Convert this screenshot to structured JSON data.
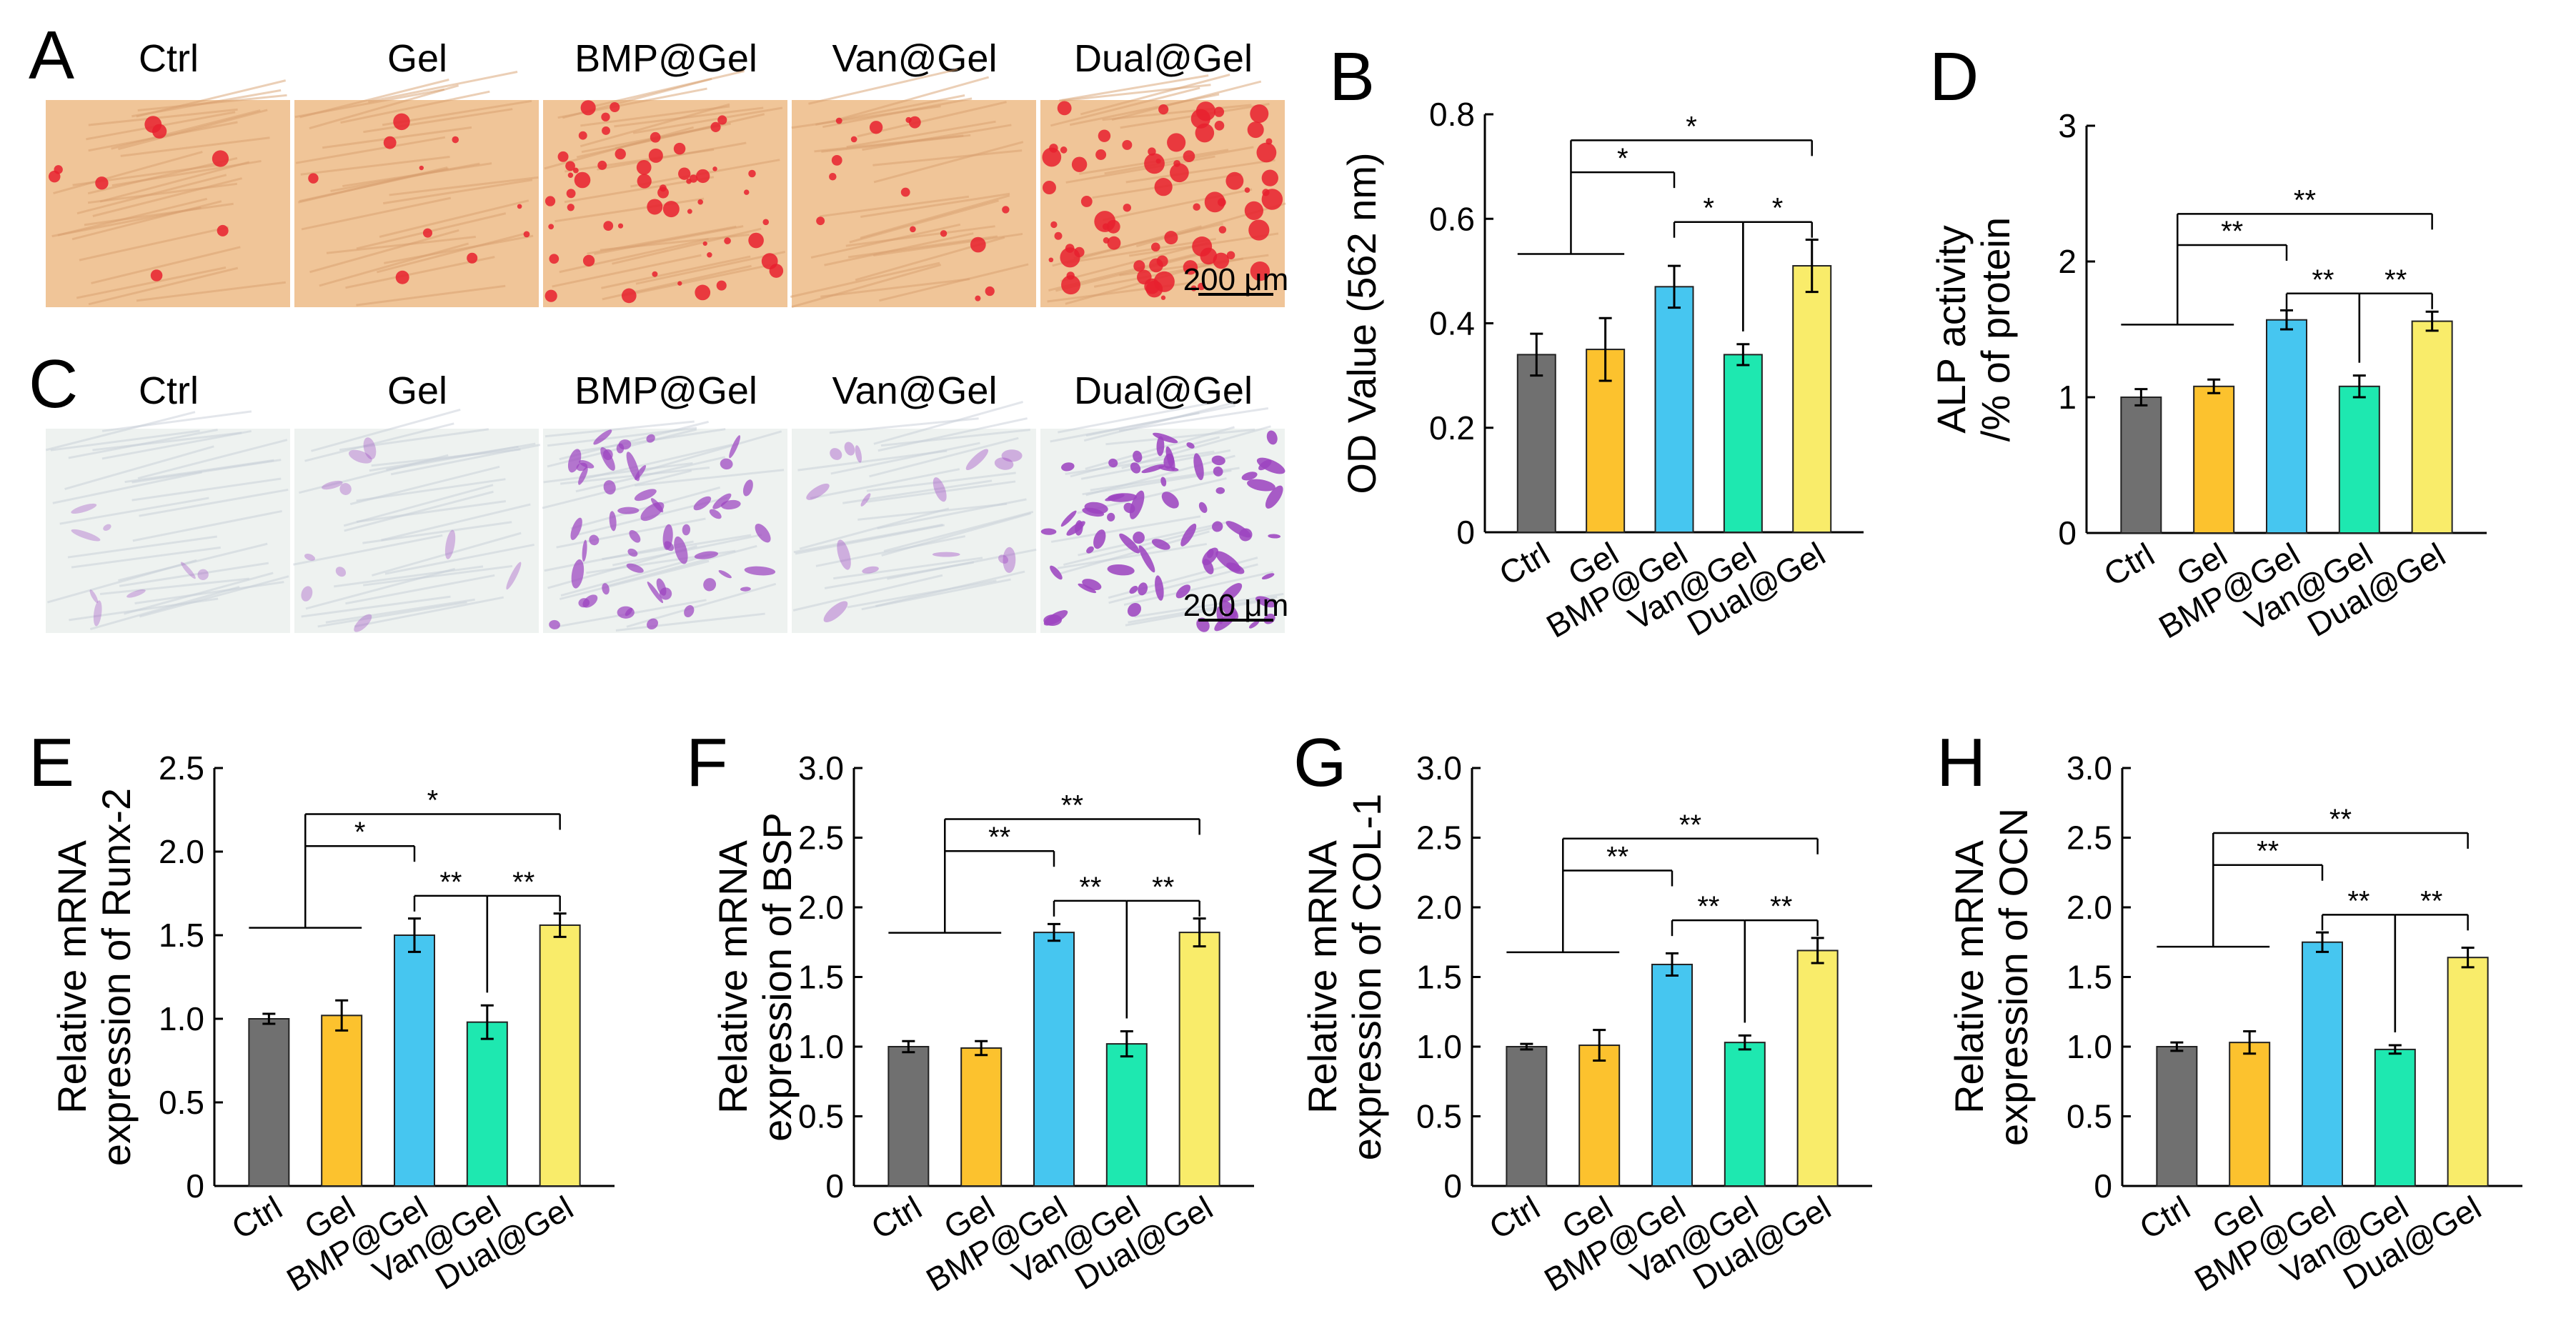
{
  "micrographs": [
    {
      "label": "A",
      "groups": [
        "Ctrl",
        "Gel",
        "BMP@Gel",
        "Van@Gel",
        "Dual@Gel"
      ],
      "stain": "alizarin-red",
      "scale_bar": "200 μm"
    },
    {
      "label": "C",
      "groups": [
        "Ctrl",
        "Gel",
        "BMP@Gel",
        "Van@Gel",
        "Dual@Gel"
      ],
      "stain": "alp-purple",
      "scale_bar": "200 μm"
    }
  ],
  "chart_data": [
    {
      "panel": "B",
      "type": "bar",
      "categories": [
        "Ctrl",
        "Gel",
        "BMP@Gel",
        "Van@Gel",
        "Dual@Gel"
      ],
      "values": [
        0.34,
        0.35,
        0.47,
        0.34,
        0.51
      ],
      "errors": [
        0.04,
        0.06,
        0.04,
        0.02,
        0.05
      ],
      "ylabel": "OD Value (562 nm)",
      "ylim": [
        0,
        0.8
      ],
      "yticks": [
        "0",
        "0.2",
        "0.4",
        "0.6",
        "0.8"
      ],
      "tickvals": [
        0,
        0.2,
        0.4,
        0.6,
        0.8
      ],
      "significance": [
        {
          "from": "group",
          "to": 2,
          "label": "*"
        },
        {
          "from": "group",
          "to": 4,
          "label": "*"
        },
        {
          "from": 3,
          "to": 2,
          "label": "*"
        },
        {
          "from": 3,
          "to": 4,
          "label": "*"
        }
      ]
    },
    {
      "panel": "D",
      "type": "bar",
      "categories": [
        "Ctrl",
        "Gel",
        "BMP@Gel",
        "Van@Gel",
        "Dual@Gel"
      ],
      "values": [
        1.0,
        1.08,
        1.57,
        1.08,
        1.56
      ],
      "errors": [
        0.06,
        0.05,
        0.07,
        0.08,
        0.07
      ],
      "ylabel": [
        "ALP activity",
        "/% of protein"
      ],
      "ylim": [
        0,
        3
      ],
      "yticks": [
        "0",
        "1",
        "2",
        "3"
      ],
      "tickvals": [
        0,
        1,
        2,
        3
      ],
      "significance": [
        {
          "from": "group",
          "to": 2,
          "label": "**"
        },
        {
          "from": "group",
          "to": 4,
          "label": "**"
        },
        {
          "from": 3,
          "to": 2,
          "label": "**"
        },
        {
          "from": 3,
          "to": 4,
          "label": "**"
        }
      ]
    },
    {
      "panel": "E",
      "type": "bar",
      "categories": [
        "Ctrl",
        "Gel",
        "BMP@Gel",
        "Van@Gel",
        "Dual@Gel"
      ],
      "values": [
        1.0,
        1.02,
        1.5,
        0.98,
        1.56
      ],
      "errors": [
        0.03,
        0.09,
        0.1,
        0.1,
        0.07
      ],
      "ylabel": [
        "Relative mRNA",
        "expression of Runx-2"
      ],
      "ylim": [
        0,
        2.5
      ],
      "yticks": [
        "0",
        "0.5",
        "1.0",
        "1.5",
        "2.0",
        "2.5"
      ],
      "tickvals": [
        0,
        0.5,
        1.0,
        1.5,
        2.0,
        2.5
      ],
      "significance": [
        {
          "from": "group",
          "to": 2,
          "label": "*"
        },
        {
          "from": "group",
          "to": 4,
          "label": "*"
        },
        {
          "from": 3,
          "to": 2,
          "label": "**"
        },
        {
          "from": 3,
          "to": 4,
          "label": "**"
        }
      ]
    },
    {
      "panel": "F",
      "type": "bar",
      "categories": [
        "Ctrl",
        "Gel",
        "BMP@Gel",
        "Van@Gel",
        "Dual@Gel"
      ],
      "values": [
        1.0,
        0.99,
        1.82,
        1.02,
        1.82
      ],
      "errors": [
        0.04,
        0.05,
        0.06,
        0.09,
        0.1
      ],
      "ylabel": [
        "Relative mRNA",
        "expression of BSP"
      ],
      "ylim": [
        0,
        3.0
      ],
      "yticks": [
        "0",
        "0.5",
        "1.0",
        "1.5",
        "2.0",
        "2.5",
        "3.0"
      ],
      "tickvals": [
        0,
        0.5,
        1.0,
        1.5,
        2.0,
        2.5,
        3.0
      ],
      "significance": [
        {
          "from": "group",
          "to": 2,
          "label": "**"
        },
        {
          "from": "group",
          "to": 4,
          "label": "**"
        },
        {
          "from": 3,
          "to": 2,
          "label": "**"
        },
        {
          "from": 3,
          "to": 4,
          "label": "**"
        }
      ]
    },
    {
      "panel": "G",
      "type": "bar",
      "categories": [
        "Ctrl",
        "Gel",
        "BMP@Gel",
        "Van@Gel",
        "Dual@Gel"
      ],
      "values": [
        1.0,
        1.01,
        1.59,
        1.03,
        1.69
      ],
      "errors": [
        0.02,
        0.11,
        0.08,
        0.05,
        0.09
      ],
      "ylabel": [
        "Relative mRNA",
        "expression of COL-1"
      ],
      "ylim": [
        0,
        3.0
      ],
      "yticks": [
        "0",
        "0.5",
        "1.0",
        "1.5",
        "2.0",
        "2.5",
        "3.0"
      ],
      "tickvals": [
        0,
        0.5,
        1.0,
        1.5,
        2.0,
        2.5,
        3.0
      ],
      "significance": [
        {
          "from": "group",
          "to": 2,
          "label": "**"
        },
        {
          "from": "group",
          "to": 4,
          "label": "**"
        },
        {
          "from": 3,
          "to": 2,
          "label": "**"
        },
        {
          "from": 3,
          "to": 4,
          "label": "**"
        }
      ]
    },
    {
      "panel": "H",
      "type": "bar",
      "categories": [
        "Ctrl",
        "Gel",
        "BMP@Gel",
        "Van@Gel",
        "Dual@Gel"
      ],
      "values": [
        1.0,
        1.03,
        1.75,
        0.98,
        1.64
      ],
      "errors": [
        0.03,
        0.08,
        0.07,
        0.03,
        0.07
      ],
      "ylabel": [
        "Relative mRNA",
        "expression of OCN"
      ],
      "ylim": [
        0,
        3.0
      ],
      "yticks": [
        "0",
        "0.5",
        "1.0",
        "1.5",
        "2.0",
        "2.5",
        "3.0"
      ],
      "tickvals": [
        0,
        0.5,
        1.0,
        1.5,
        2.0,
        2.5,
        3.0
      ],
      "significance": [
        {
          "from": "group",
          "to": 2,
          "label": "**"
        },
        {
          "from": "group",
          "to": 4,
          "label": "**"
        },
        {
          "from": 3,
          "to": 2,
          "label": "**"
        },
        {
          "from": 3,
          "to": 4,
          "label": "**"
        }
      ]
    }
  ],
  "colors": {
    "Ctrl": "#707070",
    "Gel": "#fcc22e",
    "BMP@Gel": "#46c6f0",
    "Van@Gel": "#1ee8b0",
    "Dual@Gel": "#f9ec6a",
    "alizarin_bg": "#f0c598",
    "alizarin_spot": "#e8202e",
    "alp_bg": "#eef2f0",
    "alp_cell": "#9c44c0"
  }
}
